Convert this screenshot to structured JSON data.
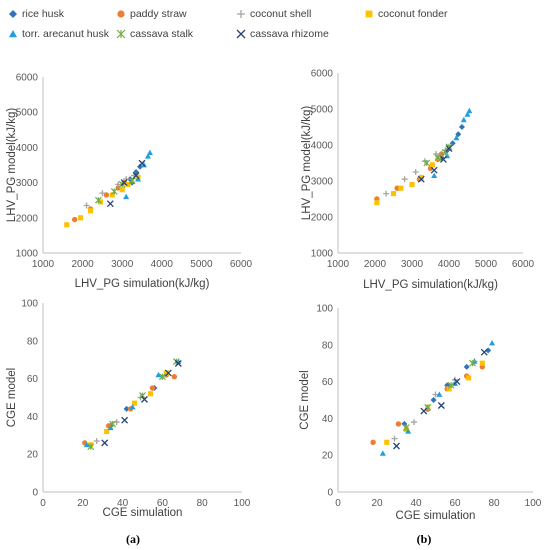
{
  "legend": [
    {
      "name": "rice husk",
      "marker": "diamond",
      "color": "#2e75b6"
    },
    {
      "name": "paddy straw",
      "marker": "circle",
      "color": "#ed7d31"
    },
    {
      "name": "coconut shell",
      "marker": "plus",
      "color": "#a5a5a5"
    },
    {
      "name": "coconut fonder",
      "marker": "square",
      "color": "#ffc000"
    },
    {
      "name": "torr. arecanut husk",
      "marker": "triangle",
      "color": "#1f9fe0"
    },
    {
      "name": "cassava stalk",
      "marker": "star",
      "color": "#70ad47"
    },
    {
      "name": "cassava rhizome",
      "marker": "x",
      "color": "#264478"
    }
  ],
  "captions": {
    "a": "(a)",
    "b": "(b)"
  },
  "chart_data": [
    {
      "id": "tl",
      "type": "scatter",
      "xlabel": "LHV_PG simulation(kJ/kg)",
      "ylabel": "LHV_PG model(kJ/kg)",
      "xlim": [
        1000,
        6000
      ],
      "ylim": [
        1000,
        6000
      ],
      "xticks": [
        "1000",
        "2000",
        "3000",
        "4000",
        "5000",
        "6000"
      ],
      "yticks": [
        "1000",
        "2000",
        "3000",
        "4000",
        "5000",
        "6000"
      ],
      "series": [
        {
          "name": "rice husk",
          "points": [
            [
              3200,
              3100
            ],
            [
              3350,
              3300
            ],
            [
              3450,
              3450
            ],
            [
              3250,
              3000
            ]
          ]
        },
        {
          "name": "paddy straw",
          "points": [
            [
              1800,
              1950
            ],
            [
              2200,
              2250
            ],
            [
              2600,
              2650
            ],
            [
              2900,
              2850
            ],
            [
              3050,
              3000
            ]
          ]
        },
        {
          "name": "coconut shell",
          "points": [
            [
              2100,
              2350
            ],
            [
              2500,
              2700
            ],
            [
              2900,
              2950
            ],
            [
              3100,
              3100
            ],
            [
              3300,
              3200
            ]
          ]
        },
        {
          "name": "coconut fonder",
          "points": [
            [
              1600,
              1800
            ],
            [
              1950,
              2000
            ],
            [
              2200,
              2200
            ],
            [
              2450,
              2450
            ],
            [
              2750,
              2650
            ],
            [
              3000,
              2800
            ],
            [
              3150,
              2950
            ],
            [
              3400,
              3150
            ]
          ]
        },
        {
          "name": "torr. arecanut husk",
          "points": [
            [
              3100,
              2600
            ],
            [
              3400,
              3100
            ],
            [
              3550,
              3500
            ],
            [
              3650,
              3750
            ],
            [
              3700,
              3850
            ]
          ]
        },
        {
          "name": "cassava stalk",
          "points": [
            [
              2400,
              2500
            ],
            [
              2800,
              2750
            ],
            [
              3000,
              2950
            ],
            [
              3250,
              3050
            ]
          ]
        },
        {
          "name": "cassava rhizome",
          "points": [
            [
              2700,
              2400
            ],
            [
              3050,
              3000
            ],
            [
              3350,
              3200
            ],
            [
              3500,
              3550
            ]
          ]
        }
      ]
    },
    {
      "id": "tr",
      "type": "scatter",
      "xlabel": "LHV_PG simulation(kJ/kg)",
      "ylabel": "LHV_PG model(kJ/kg)",
      "xlim": [
        1000,
        6000
      ],
      "ylim": [
        1000,
        6000
      ],
      "xticks": [
        "1000",
        "2000",
        "3000",
        "4000",
        "5000",
        "6000"
      ],
      "yticks": [
        "1000",
        "2000",
        "3000",
        "4000",
        "5000",
        "6000"
      ],
      "series": [
        {
          "name": "rice husk",
          "points": [
            [
              3800,
              3650
            ],
            [
              3950,
              3850
            ],
            [
              4100,
              4050
            ],
            [
              4250,
              4300
            ],
            [
              4350,
              4500
            ]
          ]
        },
        {
          "name": "paddy straw",
          "points": [
            [
              2050,
              2500
            ],
            [
              2600,
              2800
            ],
            [
              3200,
              3050
            ],
            [
              3500,
              3350
            ],
            [
              3700,
              3600
            ],
            [
              3800,
              3750
            ]
          ]
        },
        {
          "name": "coconut shell",
          "points": [
            [
              2300,
              2650
            ],
            [
              2800,
              3050
            ],
            [
              3100,
              3250
            ],
            [
              3350,
              3550
            ],
            [
              3650,
              3750
            ],
            [
              3900,
              3850
            ]
          ]
        },
        {
          "name": "coconut fonder",
          "points": [
            [
              2050,
              2400
            ],
            [
              2500,
              2650
            ],
            [
              2700,
              2800
            ],
            [
              3000,
              2900
            ],
            [
              3250,
              3100
            ],
            [
              3550,
              3450
            ],
            [
              3700,
              3650
            ]
          ]
        },
        {
          "name": "torr. arecanut husk",
          "points": [
            [
              3600,
              3150
            ],
            [
              3950,
              3700
            ],
            [
              4200,
              4200
            ],
            [
              4400,
              4700
            ],
            [
              4500,
              4850
            ],
            [
              4550,
              4950
            ]
          ]
        },
        {
          "name": "cassava stalk",
          "points": [
            [
              3400,
              3500
            ],
            [
              3700,
              3650
            ],
            [
              3900,
              3800
            ],
            [
              4000,
              3950
            ]
          ]
        },
        {
          "name": "cassava rhizome",
          "points": [
            [
              3250,
              3050
            ],
            [
              3600,
              3300
            ],
            [
              3850,
              3600
            ],
            [
              4000,
              3900
            ]
          ]
        }
      ]
    },
    {
      "id": "bl",
      "type": "scatter",
      "xlabel": "CGE simulation",
      "ylabel": "CGE model",
      "xlim": [
        0,
        100
      ],
      "ylim": [
        0,
        100
      ],
      "xticks": [
        "0",
        "20",
        "40",
        "60",
        "80",
        "100"
      ],
      "yticks": [
        "0",
        "20",
        "40",
        "60",
        "80",
        "100"
      ],
      "series": [
        {
          "name": "rice husk",
          "points": [
            [
              34,
              35
            ],
            [
              42,
              44
            ],
            [
              56,
              55
            ],
            [
              62,
              62
            ]
          ]
        },
        {
          "name": "paddy straw",
          "points": [
            [
              21,
              26
            ],
            [
              33,
              35
            ],
            [
              44,
              44
            ],
            [
              55,
              55
            ],
            [
              62,
              62
            ],
            [
              66,
              61
            ]
          ]
        },
        {
          "name": "coconut shell",
          "points": [
            [
              27,
              27
            ],
            [
              37,
              37
            ],
            [
              49,
              50
            ],
            [
              60,
              61
            ]
          ]
        },
        {
          "name": "coconut fonder",
          "points": [
            [
              24,
              25
            ],
            [
              32,
              32
            ],
            [
              46,
              47
            ],
            [
              54,
              52
            ],
            [
              62,
              63
            ]
          ]
        },
        {
          "name": "torr. arecanut husk",
          "points": [
            [
              22,
              25
            ],
            [
              34,
              34
            ],
            [
              45,
              45
            ],
            [
              58,
              62
            ],
            [
              68,
              69
            ]
          ]
        },
        {
          "name": "cassava stalk",
          "points": [
            [
              24,
              24
            ],
            [
              35,
              36
            ],
            [
              50,
              51
            ],
            [
              60,
              61
            ],
            [
              67,
              69
            ]
          ]
        },
        {
          "name": "cassava rhizome",
          "points": [
            [
              31,
              26
            ],
            [
              41,
              38
            ],
            [
              51,
              49
            ],
            [
              63,
              63
            ],
            [
              68,
              68
            ]
          ]
        }
      ]
    },
    {
      "id": "br",
      "type": "scatter",
      "xlabel": "CGE simulation",
      "ylabel": "CGE model",
      "xlim": [
        0,
        100
      ],
      "ylim": [
        0,
        100
      ],
      "xticks": [
        "0",
        "20",
        "40",
        "60",
        "80",
        "100"
      ],
      "yticks": [
        "0",
        "20",
        "40",
        "60",
        "80",
        "100"
      ],
      "series": [
        {
          "name": "rice husk",
          "points": [
            [
              34,
              37
            ],
            [
              49,
              50
            ],
            [
              56,
              58
            ],
            [
              66,
              68
            ],
            [
              77,
              77
            ]
          ]
        },
        {
          "name": "paddy straw",
          "points": [
            [
              18,
              27
            ],
            [
              31,
              37
            ],
            [
              46,
              45
            ],
            [
              56,
              56
            ],
            [
              66,
              63
            ],
            [
              74,
              68
            ]
          ]
        },
        {
          "name": "coconut shell",
          "points": [
            [
              29,
              29
            ],
            [
              39,
              38
            ],
            [
              50,
              53
            ],
            [
              60,
              61
            ],
            [
              70,
              71
            ]
          ]
        },
        {
          "name": "coconut fonder",
          "points": [
            [
              25,
              27
            ],
            [
              35,
              34
            ],
            [
              46,
              46
            ],
            [
              57,
              56
            ],
            [
              67,
              62
            ],
            [
              74,
              70
            ]
          ]
        },
        {
          "name": "torr. arecanut husk",
          "points": [
            [
              23,
              21
            ],
            [
              36,
              33
            ],
            [
              52,
              53
            ],
            [
              60,
              59
            ],
            [
              70,
              71
            ],
            [
              79,
              81
            ]
          ]
        },
        {
          "name": "cassava stalk",
          "points": [
            [
              35,
              35
            ],
            [
              46,
              46
            ],
            [
              58,
              58
            ],
            [
              69,
              70
            ]
          ]
        },
        {
          "name": "cassava rhizome",
          "points": [
            [
              30,
              25
            ],
            [
              44,
              44
            ],
            [
              53,
              47
            ],
            [
              61,
              60
            ],
            [
              75,
              76
            ]
          ]
        }
      ]
    }
  ]
}
